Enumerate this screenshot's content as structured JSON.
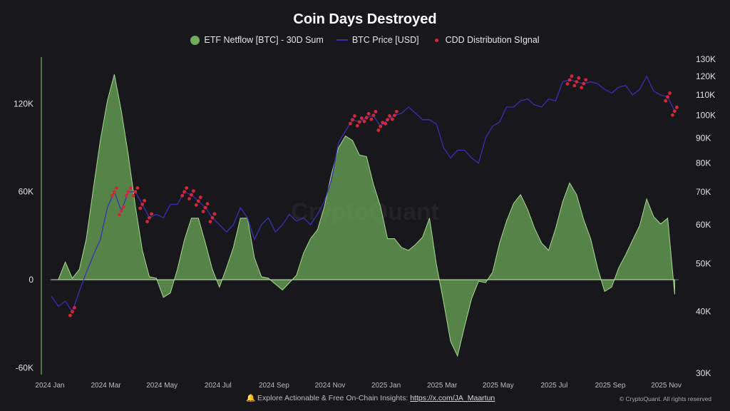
{
  "chart_data": {
    "type": "area+line",
    "title": "Coin Days Destroyed",
    "legend": [
      "ETF Netflow [BTC] - 30D Sum",
      "BTC Price [USD]",
      "CDD Distribution SIgnal"
    ],
    "legend_position": "top-center",
    "x_start_month": 0.05,
    "x_step_month": 0.25,
    "x_ticks": [
      "2024 Jan",
      "2024 Mar",
      "2024 May",
      "2024 Jul",
      "2024 Sep",
      "2024 Nov",
      "2025 Jan",
      "2025 Mar",
      "2025 May",
      "2025 Jul",
      "2025 Sep",
      "2025 Nov"
    ],
    "y_left_ticks": [
      {
        "v": 120,
        "label": "120K"
      },
      {
        "v": 60,
        "label": "60K"
      },
      {
        "v": 0,
        "label": "0"
      },
      {
        "v": -60,
        "label": "-60K"
      }
    ],
    "y_left_range": [
      -64,
      150
    ],
    "y_right_ticks": [
      {
        "v": 130,
        "label": "130K"
      },
      {
        "v": 120,
        "label": "120K"
      },
      {
        "v": 110,
        "label": "110K"
      },
      {
        "v": 100,
        "label": "100K"
      },
      {
        "v": 90,
        "label": "90K"
      },
      {
        "v": 80,
        "label": "80K"
      },
      {
        "v": 70,
        "label": "70K"
      },
      {
        "v": 60,
        "label": "60K"
      },
      {
        "v": 50,
        "label": "50K"
      },
      {
        "v": 40,
        "label": "40K"
      },
      {
        "v": 30,
        "label": "30K"
      }
    ],
    "y_right_scale": "log",
    "y_right_range": [
      30,
      130
    ],
    "netflow_k": [
      0,
      0,
      12,
      1,
      7,
      28,
      62,
      95,
      122,
      140,
      115,
      85,
      50,
      20,
      2,
      1,
      -12,
      -9,
      7,
      27,
      42,
      42,
      25,
      7,
      -5,
      8,
      22,
      42,
      42,
      15,
      2,
      1,
      -3,
      -7,
      -2,
      3,
      18,
      28,
      34,
      50,
      72,
      90,
      98,
      95,
      85,
      84,
      65,
      50,
      28,
      28,
      22,
      20,
      24,
      29,
      42,
      10,
      -15,
      -42,
      -52,
      -32,
      -13,
      -1,
      -2,
      5,
      25,
      40,
      52,
      58,
      48,
      35,
      25,
      20,
      35,
      53,
      66,
      58,
      41,
      28,
      8,
      -8,
      -5,
      8,
      17,
      27,
      37,
      55,
      43,
      38,
      42,
      -10
    ],
    "price_k": [
      43,
      41,
      42,
      40,
      44,
      48,
      52,
      56,
      65,
      70,
      64,
      70,
      70,
      66,
      62,
      63,
      62,
      66,
      66,
      70,
      69,
      67,
      65,
      62,
      60,
      58,
      60,
      65,
      62,
      56,
      60,
      62,
      58,
      60,
      63,
      61,
      62,
      60,
      63,
      67,
      74,
      88,
      93,
      98,
      97,
      99,
      100,
      95,
      98,
      100,
      101,
      104,
      101,
      98,
      98,
      96,
      86,
      82,
      85,
      85,
      82,
      80,
      90,
      95,
      97,
      104,
      104,
      107,
      108,
      105,
      104,
      108,
      107,
      117,
      118,
      117,
      116,
      117,
      116,
      113,
      111,
      114,
      115,
      110,
      113,
      120,
      112,
      110,
      109,
      102
    ],
    "signal_indices": [
      3,
      9,
      10,
      11,
      12,
      13,
      14,
      19,
      20,
      21,
      22,
      23,
      43,
      44,
      45,
      46,
      47,
      48,
      49,
      74,
      75,
      76,
      88,
      89
    ],
    "colors": {
      "netflow": "#6fae5a",
      "price": "#3a2fb5",
      "signal": "#d4283a"
    }
  },
  "watermark": "CryptoQuant",
  "footer": {
    "text": "Explore Actionable & Free On-Chain Insights: ",
    "link": "https://x.com/JA_Maartun",
    "copyright": "© CryptoQuant. All rights reserved"
  }
}
